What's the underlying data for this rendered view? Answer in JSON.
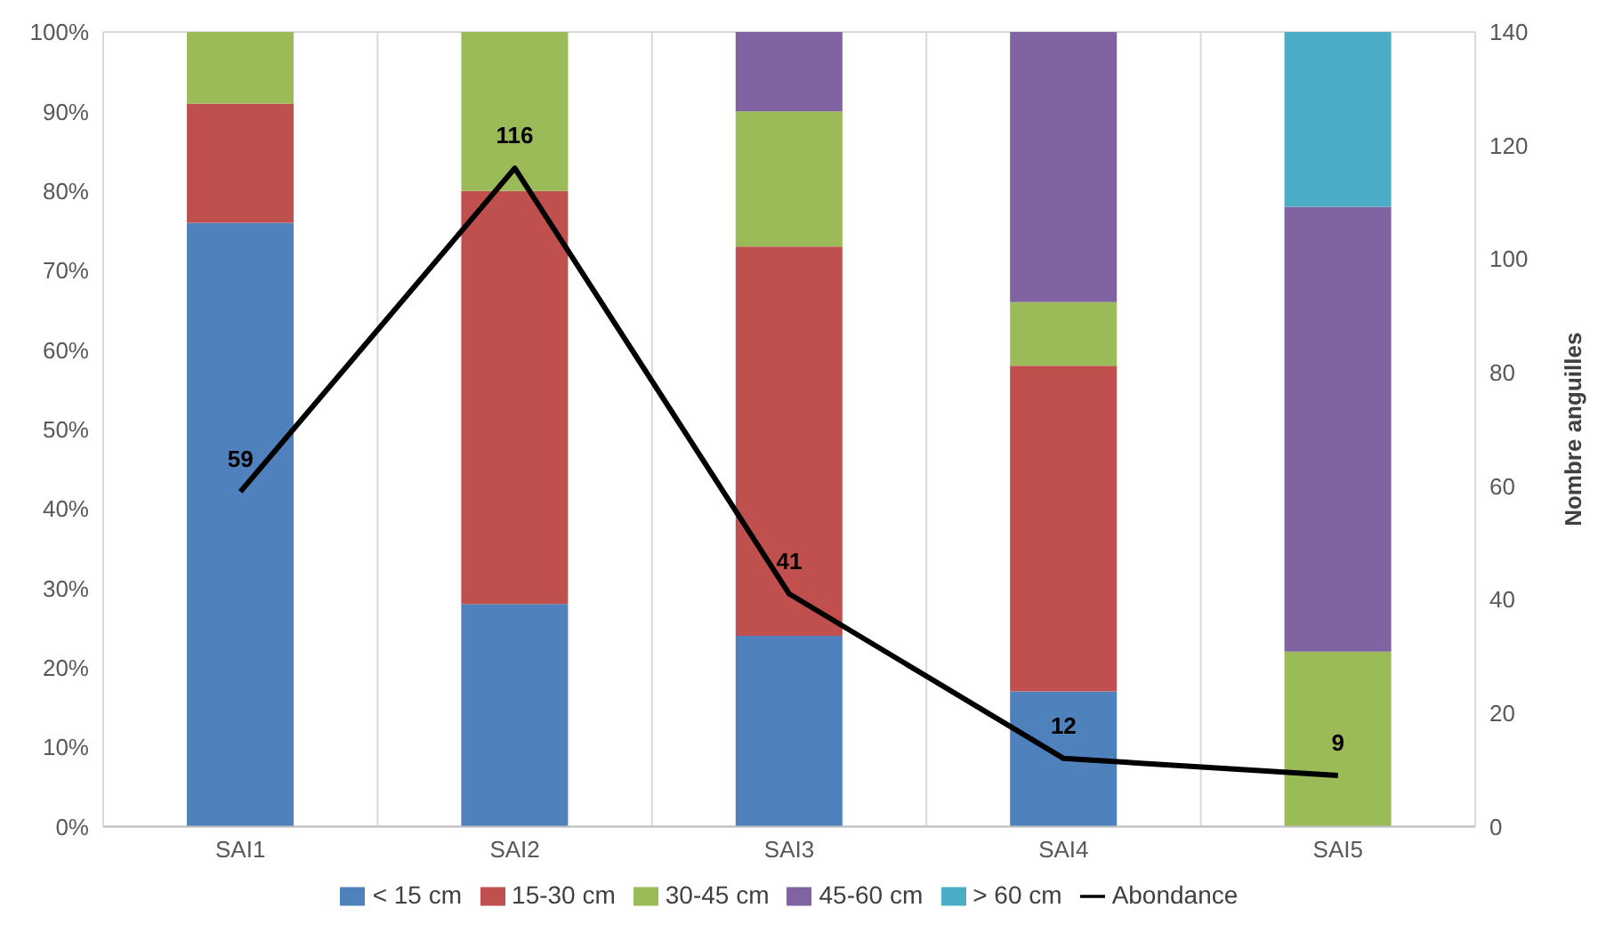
{
  "chart_data": {
    "type": "bar",
    "stacked": true,
    "categories": [
      "SAI1",
      "SAI2",
      "SAI3",
      "SAI4",
      "SAI5"
    ],
    "series": [
      {
        "name": "< 15 cm",
        "color": "#4f81bd",
        "values": [
          76,
          28,
          24,
          17,
          0
        ]
      },
      {
        "name": "15-30 cm",
        "color": "#c0504d",
        "values": [
          15,
          52,
          49,
          41,
          0
        ]
      },
      {
        "name": "30-45 cm",
        "color": "#9bbb59",
        "values": [
          9,
          20,
          17,
          8,
          22
        ]
      },
      {
        "name": "45-60 cm",
        "color": "#8064a2",
        "values": [
          0,
          0,
          10,
          34,
          56
        ]
      },
      {
        "name": "> 60 cm",
        "color": "#4bacc6",
        "values": [
          0,
          0,
          0,
          0,
          22
        ]
      },
      {
        "name": "Abondance",
        "type": "line",
        "axis": "y2",
        "color": "#000000",
        "values": [
          59,
          116,
          41,
          12,
          9
        ],
        "value_labels": [
          "59",
          "116",
          "41",
          "12",
          "9"
        ]
      }
    ],
    "ylim": [
      0,
      100
    ],
    "yticks": [
      {
        "value": 0,
        "label": "0%"
      },
      {
        "value": 10,
        "label": "10%"
      },
      {
        "value": 20,
        "label": "20%"
      },
      {
        "value": 30,
        "label": "30%"
      },
      {
        "value": 40,
        "label": "40%"
      },
      {
        "value": 50,
        "label": "50%"
      },
      {
        "value": 60,
        "label": "60%"
      },
      {
        "value": 70,
        "label": "70%"
      },
      {
        "value": 80,
        "label": "80%"
      },
      {
        "value": 90,
        "label": "90%"
      },
      {
        "value": 100,
        "label": "100%"
      }
    ],
    "y2label": "Nombre anguilles",
    "y2lim": [
      0,
      140
    ],
    "y2ticks": [
      0,
      20,
      40,
      60,
      80,
      100,
      120,
      140
    ],
    "grid": true,
    "legend": "bottom",
    "marker": "none",
    "line_style": "solid"
  }
}
